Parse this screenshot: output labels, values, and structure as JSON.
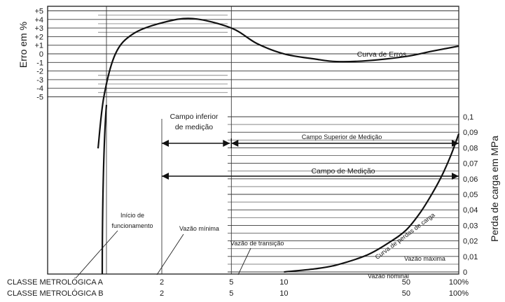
{
  "chart_data": {
    "type": "line",
    "error_axis": {
      "title": "Erro em %",
      "ticks": [
        "+5",
        "+4",
        "+3",
        "+2",
        "+1",
        "0",
        "-1",
        "-2",
        "-3",
        "-4",
        "-5"
      ],
      "values": [
        5,
        4,
        3,
        2,
        1,
        0,
        -1,
        -2,
        -3,
        -4,
        -5
      ]
    },
    "pressure_axis": {
      "title": "Perda de carga em MPa",
      "ticks": [
        "0,1",
        "0,09",
        "0,08",
        "0,07",
        "0,06",
        "0,05",
        "0,04",
        "0,03",
        "0,02",
        "0,01",
        "0"
      ],
      "values": [
        0.1,
        0.09,
        0.08,
        0.07,
        0.06,
        0.05,
        0.04,
        0.03,
        0.02,
        0.01,
        0
      ]
    },
    "x_axis": {
      "scale": "log",
      "rows": [
        {
          "label": "CLASSE METROLÓGICA A",
          "ticks": [
            "2",
            "5",
            "10",
            "50",
            "100%"
          ]
        },
        {
          "label": "CLASSE METROLÓGICA B",
          "ticks": [
            "2",
            "5",
            "10",
            "50",
            "100%"
          ]
        }
      ],
      "tick_values": [
        2,
        5,
        10,
        50,
        100
      ]
    },
    "series": [
      {
        "name": "Curva de Erros",
        "x": [
          0.9,
          1.0,
          1.2,
          1.5,
          2.0,
          3.0,
          5.0,
          7.0,
          10.0,
          15.0,
          20.0,
          30.0,
          50.0,
          70.0,
          100.0
        ],
        "y": [
          -11,
          -5,
          0,
          2.3,
          3.6,
          4.1,
          3.0,
          1.2,
          0.0,
          -0.6,
          -0.9,
          -0.8,
          -0.3,
          0.3,
          0.9
        ]
      },
      {
        "name": "Curva de perdas de carga",
        "x": [
          10,
          15,
          20,
          30,
          40,
          50,
          60,
          70,
          80,
          90,
          100
        ],
        "y": [
          0,
          0.002,
          0.0045,
          0.011,
          0.019,
          0.027,
          0.038,
          0.05,
          0.062,
          0.075,
          0.089
        ]
      }
    ],
    "ranges": [
      {
        "label": "Campo inferior de medição",
        "from": 2,
        "to": 5
      },
      {
        "label": "Campo Superior de Medição",
        "from": 5,
        "to": 100
      },
      {
        "label": "Campo de Medição",
        "from": 2,
        "to": 100
      }
    ],
    "annotations": {
      "inicio": "Início de funcionamento",
      "vazao_minima": "Vazão mínima",
      "vazao_transicao": "Vazão de transição",
      "vazao_maxima": "Vazão máxima",
      "vazao_nominal": "Vazão nominal",
      "curva_erros": "Curva de Erros",
      "curva_perdas": "Curva de perdas de carga",
      "campo_inferior_line1": "Campo inferior",
      "campo_inferior_line2": "de medição"
    }
  }
}
